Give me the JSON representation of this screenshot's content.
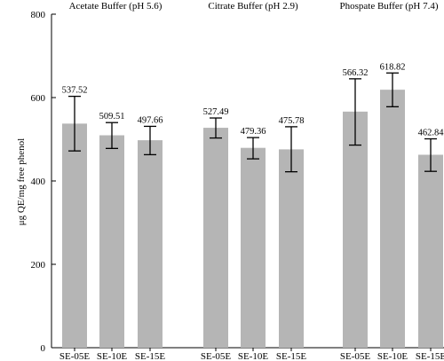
{
  "chart_data": {
    "type": "bar",
    "ylabel": "μg QE/mg free phenol",
    "ylim": [
      0,
      800
    ],
    "yticks": [
      0,
      200,
      400,
      600,
      800
    ],
    "colors": {
      "bar": "#b5b5b5",
      "axis": "#000000",
      "error_bar": "#000000"
    },
    "groups": [
      {
        "title": "Acetate Buffer (pH 5.6)",
        "bars": [
          {
            "category": "SE-05E",
            "value": 537.52,
            "label": "537.52",
            "err_low": 472,
            "err_high": 603
          },
          {
            "category": "SE-10E",
            "value": 509.51,
            "label": "509.51",
            "err_low": 478,
            "err_high": 540
          },
          {
            "category": "SE-15E",
            "value": 497.66,
            "label": "497.66",
            "err_low": 463,
            "err_high": 531
          }
        ]
      },
      {
        "title": "Citrate Buffer (pH 2.9)",
        "bars": [
          {
            "category": "SE-05E",
            "value": 527.49,
            "label": "527.49",
            "err_low": 503,
            "err_high": 551
          },
          {
            "category": "SE-10E",
            "value": 479.36,
            "label": "479.36",
            "err_low": 453,
            "err_high": 504
          },
          {
            "category": "SE-15E",
            "value": 475.78,
            "label": "475.78",
            "err_low": 422,
            "err_high": 530
          }
        ]
      },
      {
        "title": "Phospate Buffer (pH 7.4)",
        "bars": [
          {
            "category": "SE-05E",
            "value": 566.32,
            "label": "566.32",
            "err_low": 486,
            "err_high": 645
          },
          {
            "category": "SE-10E",
            "value": 618.82,
            "label": "618.82",
            "err_low": 578,
            "err_high": 659
          },
          {
            "category": "SE-15E",
            "value": 462.84,
            "label": "462.84",
            "err_low": 423,
            "err_high": 501
          }
        ]
      }
    ]
  }
}
